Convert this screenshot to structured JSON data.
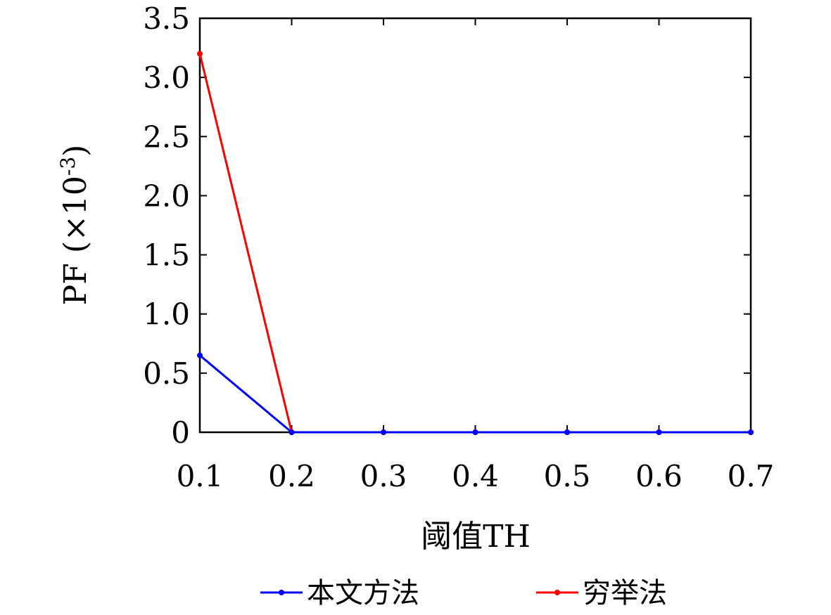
{
  "chart_data": {
    "type": "line",
    "title": "",
    "xlabel": "阈值TH",
    "ylabel_main": "PF",
    "ylabel_unit": "(×10",
    "ylabel_exp": "-3",
    "ylabel_close": ")",
    "x": [
      0.1,
      0.2,
      0.3,
      0.4,
      0.5,
      0.6,
      0.7
    ],
    "x_tick_labels": [
      "0.1",
      "0.2",
      "0.3",
      "0.4",
      "0.5",
      "0.6",
      "0.7"
    ],
    "y_ticks": [
      0,
      0.5,
      1.0,
      1.5,
      2.0,
      2.5,
      3.0,
      3.5
    ],
    "y_tick_labels": [
      "0",
      "0.5",
      "1.0",
      "1.5",
      "2.0",
      "2.5",
      "3.0",
      "3.5"
    ],
    "xlim": [
      0.1,
      0.7
    ],
    "ylim": [
      0,
      3.5
    ],
    "grid": false,
    "legend_position": "bottom",
    "series": [
      {
        "name": "本文方法",
        "color": "#0000ff",
        "values": [
          0.65,
          0,
          0,
          0,
          0,
          0,
          0
        ]
      },
      {
        "name": "穷举法",
        "color": "#ff0000",
        "values": [
          3.2,
          0,
          0,
          0,
          0,
          0,
          0
        ]
      }
    ]
  }
}
